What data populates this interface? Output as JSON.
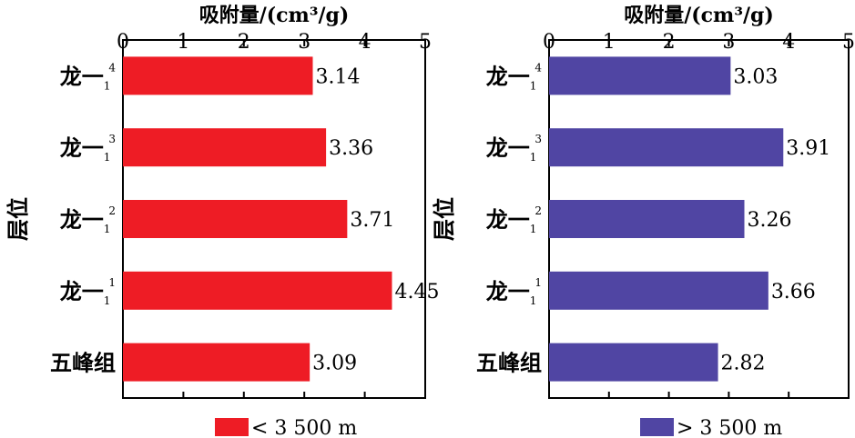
{
  "chart_data": [
    {
      "type": "bar",
      "orientation": "horizontal",
      "xlabel": "吸附量/(cm³/g)",
      "ylabel": "层位",
      "xlim": [
        0,
        5
      ],
      "xticks": [
        "0",
        "1",
        "2",
        "3",
        "4",
        "5"
      ],
      "categories": [
        {
          "main": "龙一",
          "sub": "1",
          "sup": "4"
        },
        {
          "main": "龙一",
          "sub": "1",
          "sup": "3"
        },
        {
          "main": "龙一",
          "sub": "1",
          "sup": "2"
        },
        {
          "main": "龙一",
          "sub": "1",
          "sup": "1"
        },
        {
          "main": "五峰组",
          "sub": "",
          "sup": ""
        }
      ],
      "series": [
        {
          "name": "< 3 500 m",
          "color": "#ee1c25",
          "values": [
            3.14,
            3.36,
            3.71,
            4.45,
            3.09
          ]
        }
      ],
      "value_labels": [
        "3.14",
        "3.36",
        "3.71",
        "4.45",
        "3.09"
      ],
      "legend_position": "bottom",
      "grid": false
    },
    {
      "type": "bar",
      "orientation": "horizontal",
      "xlabel": "吸附量/(cm³/g)",
      "ylabel": "层位",
      "xlim": [
        0,
        5
      ],
      "xticks": [
        "0",
        "1",
        "2",
        "3",
        "4",
        "5"
      ],
      "categories": [
        {
          "main": "龙一",
          "sub": "1",
          "sup": "4"
        },
        {
          "main": "龙一",
          "sub": "1",
          "sup": "3"
        },
        {
          "main": "龙一",
          "sub": "1",
          "sup": "2"
        },
        {
          "main": "龙一",
          "sub": "1",
          "sup": "1"
        },
        {
          "main": "五峰组",
          "sub": "",
          "sup": ""
        }
      ],
      "series": [
        {
          "name": "> 3 500 m",
          "color": "#5045a3",
          "values": [
            3.03,
            3.91,
            3.26,
            3.66,
            2.82
          ]
        }
      ],
      "value_labels": [
        "3.03",
        "3.91",
        "3.26",
        "3.66",
        "2.82"
      ],
      "legend_position": "bottom",
      "grid": false
    }
  ]
}
